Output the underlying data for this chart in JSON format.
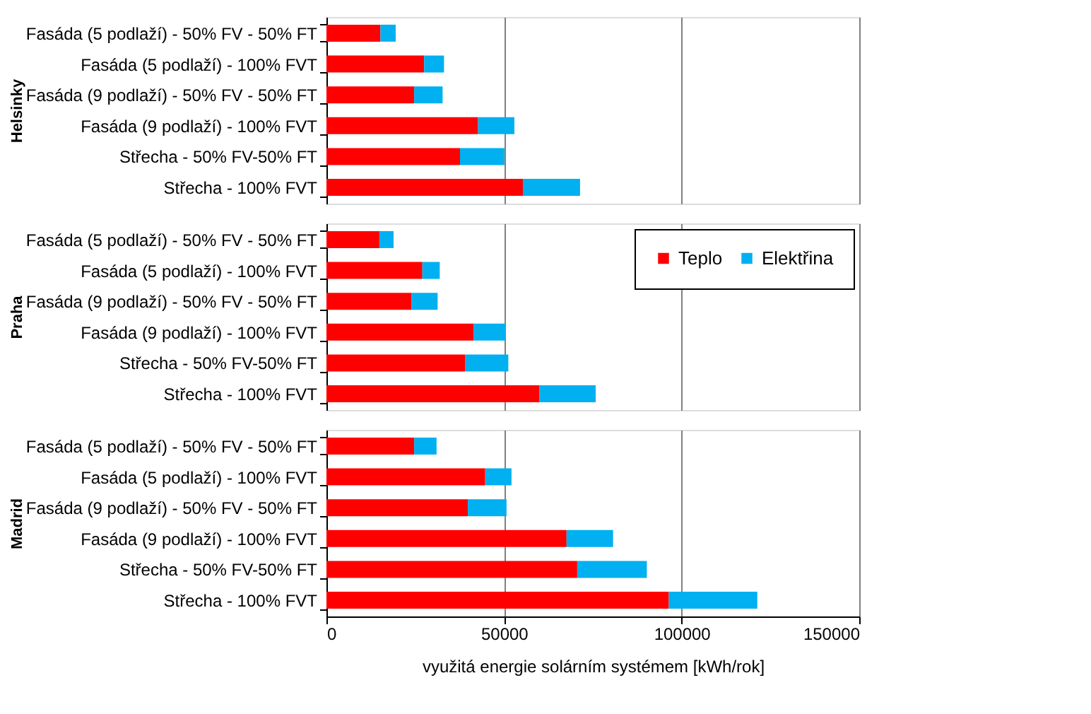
{
  "chart_data": [
    {
      "type": "bar",
      "orientation": "horizontal",
      "stacked": true,
      "ylabel": "Helsinky",
      "categories": [
        "Fasáda (5 podlaží) - 50% FV - 50% FT",
        "Fasáda (5 podlaží) - 100% FVT",
        "Fasáda (9 podlaží) - 50% FV - 50% FT",
        "Fasáda (9 podlaží) - 100% FVT",
        "Střecha - 50% FV-50% FT",
        "Střecha - 100% FVT"
      ],
      "series": [
        {
          "color": "#ff0000",
          "values": [
            15200,
            27500,
            24700,
            42700,
            37600,
            55300
          ]
        },
        {
          "color": "#00b0f0",
          "values": [
            4300,
            5600,
            8000,
            10200,
            12500,
            16100
          ]
        }
      ],
      "xlim": [
        0,
        150000
      ],
      "xticks": [
        0,
        50000,
        100000,
        150000
      ],
      "grid": "x",
      "tick_labels": "y"
    },
    {
      "type": "bar",
      "orientation": "horizontal",
      "stacked": true,
      "ylabel": "Praha",
      "categories": [
        "Fasáda (5 podlaží) - 50% FV - 50% FT",
        "Fasáda (5 podlaží) - 100% FVT",
        "Fasáda (9 podlaží) - 50% FV - 50% FT",
        "Fasáda (9 podlaží) - 100% FVT",
        "Střecha - 50% FV-50% FT",
        "Střecha - 100% FVT"
      ],
      "series": [
        {
          "name": "Teplo",
          "color": "#ff0000",
          "values": [
            14900,
            27000,
            23900,
            41500,
            39000,
            59900
          ]
        },
        {
          "name": "Elektřina",
          "color": "#00b0f0",
          "values": [
            4000,
            4900,
            7400,
            8900,
            12200,
            15900
          ]
        }
      ],
      "xlim": [
        0,
        150000
      ],
      "xticks": [
        0,
        50000,
        100000,
        150000
      ],
      "grid": "x",
      "tick_labels": "y",
      "legend": "top right"
    },
    {
      "type": "bar",
      "orientation": "horizontal",
      "stacked": true,
      "ylabel": "Madrid",
      "xlabel": "využitá energie solárním systémem [kWh/rok]",
      "categories": [
        "Fasáda (5 podlaží) - 50% FV - 50% FT",
        "Fasáda (5 podlaží) - 100% FVT",
        "Fasáda (9 podlaží) - 50% FV - 50% FT",
        "Fasáda (9 podlaží) - 100% FVT",
        "Střecha - 50% FV-50% FT",
        "Střecha - 100% FVT"
      ],
      "series": [
        {
          "color": "#ff0000",
          "values": [
            24700,
            44700,
            39800,
            67600,
            70600,
            96400
          ]
        },
        {
          "color": "#00b0f0",
          "values": [
            6300,
            7400,
            10900,
            13100,
            19600,
            24900
          ]
        }
      ],
      "xlim": [
        0,
        150000
      ],
      "xticks": [
        0,
        50000,
        100000,
        150000
      ],
      "grid": "x"
    }
  ]
}
